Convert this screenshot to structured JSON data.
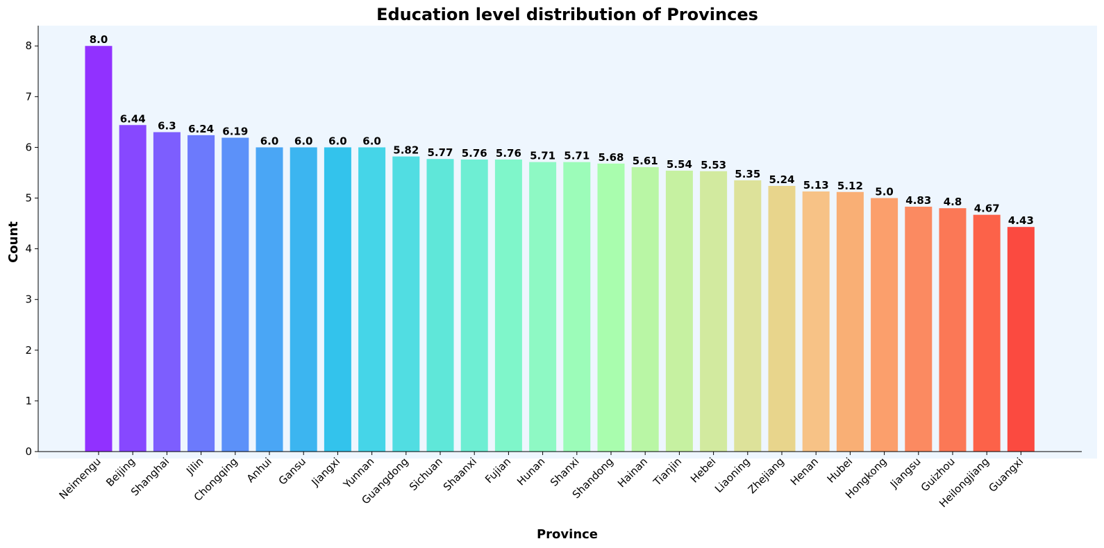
{
  "chart_data": {
    "type": "bar",
    "title": "Education level distribution of Provinces",
    "xlabel": "Province",
    "ylabel": "Count",
    "categories": [
      "Neimengu",
      "Beijing",
      "Shanghai",
      "Jilin",
      "Chongqing",
      "Anhui",
      "Gansu",
      "Jiangxi",
      "Yunnan",
      "Guangdong",
      "Sichuan",
      "Shaanxi",
      "Fujian",
      "Hunan",
      "Shanxi",
      "Shandong",
      "Hainan",
      "Tianjin",
      "Hebei",
      "Liaoning",
      "Zhejiang",
      "Henan",
      "Hubei",
      "Hongkong",
      "Jiangsu",
      "Guizhou",
      "Heilongjiang",
      "Guangxi"
    ],
    "values": [
      8.0,
      6.44,
      6.3,
      6.24,
      6.19,
      6.0,
      6.0,
      6.0,
      6.0,
      5.82,
      5.77,
      5.76,
      5.76,
      5.71,
      5.71,
      5.68,
      5.61,
      5.54,
      5.53,
      5.35,
      5.24,
      5.13,
      5.12,
      5.0,
      4.83,
      4.8,
      4.67,
      4.43
    ],
    "value_labels": [
      "8.0",
      "6.44",
      "6.3",
      "6.24",
      "6.19",
      "6.0",
      "6.0",
      "6.0",
      "6.0",
      "5.82",
      "5.77",
      "5.76",
      "5.76",
      "5.71",
      "5.71",
      "5.68",
      "5.61",
      "5.54",
      "5.53",
      "5.35",
      "5.24",
      "5.13",
      "5.12",
      "5.0",
      "4.83",
      "4.8",
      "4.67",
      "4.43"
    ],
    "colors": [
      "#9131ff",
      "#8748ff",
      "#7d5efe",
      "#6c7afc",
      "#5c91f9",
      "#4aa6f5",
      "#3cb5f0",
      "#33c3ec",
      "#45d5e8",
      "#51dde2",
      "#5fe7d9",
      "#6eeed3",
      "#7ff6ca",
      "#8ef9c4",
      "#9cfcb9",
      "#a9fdae",
      "#b9f6a5",
      "#c6f1a1",
      "#d2ea9f",
      "#dde29a",
      "#e8d58c",
      "#f7c286",
      "#f9af75",
      "#fb9f6c",
      "#fb8a61",
      "#fb7856",
      "#fc6249",
      "#fb4a40"
    ],
    "yticks": [
      0,
      1,
      2,
      3,
      4,
      5,
      6,
      7,
      8
    ],
    "ylim": [
      0,
      8.4
    ],
    "grid": false,
    "legend": "none",
    "plot_background": "#eef6fe"
  }
}
